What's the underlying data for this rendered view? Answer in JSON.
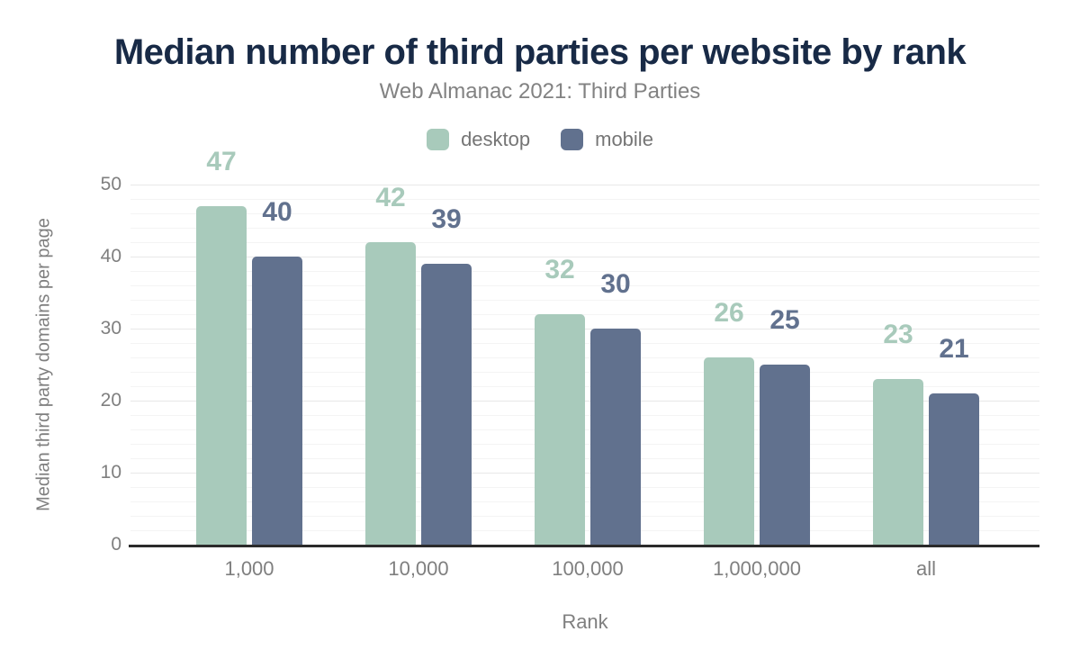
{
  "chart_data": {
    "type": "bar",
    "title": "Median number of third parties per website by rank",
    "subtitle": "Web Almanac 2021: Third Parties",
    "xlabel": "Rank",
    "ylabel": "Median third party domains per page",
    "categories": [
      "1,000",
      "10,000",
      "100,000",
      "1,000,000",
      "all"
    ],
    "series": [
      {
        "name": "desktop",
        "color": "#a8cabb",
        "values": [
          47,
          42,
          32,
          26,
          23
        ]
      },
      {
        "name": "mobile",
        "color": "#61718e",
        "values": [
          40,
          39,
          30,
          25,
          21
        ]
      }
    ],
    "ylim": [
      0,
      50
    ],
    "yticks": [
      0,
      10,
      20,
      30,
      40,
      50
    ],
    "minor_grid_step": 2,
    "grid": "on",
    "legend_position": "top",
    "data_labels": true
  },
  "colors": {
    "title_text": "#182a46",
    "muted_text": "#7f7f7f",
    "axis_line": "#2b2b2b",
    "grid_minor": "#f4f4f4",
    "grid_major": "#e8e8e8",
    "desktop": "#a8cabb",
    "mobile": "#61718e"
  }
}
